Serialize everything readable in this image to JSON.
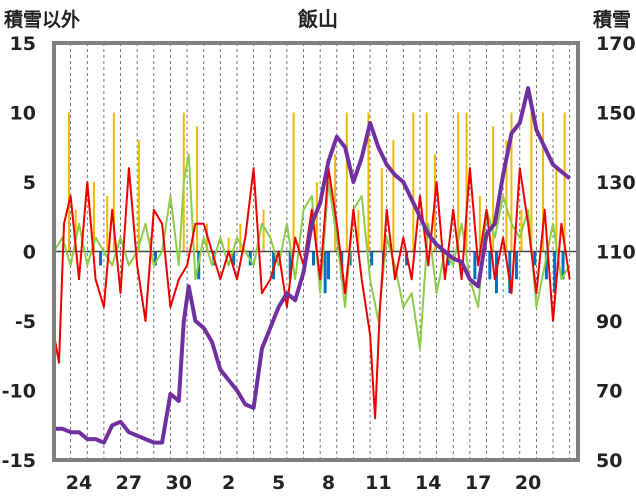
{
  "chart_data": {
    "type": "line",
    "title": "飯山",
    "ylabel_left": "積雪以外",
    "ylabel_right": "積雪",
    "y_left": {
      "min": -15,
      "max": 15,
      "ticks": [
        "15",
        "10",
        "5",
        "0",
        "-5",
        "-10",
        "-15"
      ]
    },
    "y_right": {
      "min": 50,
      "max": 170,
      "ticks": [
        "170",
        "150",
        "130",
        "110",
        "90",
        "70",
        "50"
      ]
    },
    "x_day_range": [
      0,
      31.5
    ],
    "x_tick_labels": [
      {
        "day": 1.5,
        "label": "24"
      },
      {
        "day": 4.5,
        "label": "27"
      },
      {
        "day": 7.5,
        "label": "30"
      },
      {
        "day": 10.5,
        "label": "2"
      },
      {
        "day": 13.5,
        "label": "5"
      },
      {
        "day": 16.5,
        "label": "8"
      },
      {
        "day": 19.5,
        "label": "11"
      },
      {
        "day": 22.5,
        "label": "14"
      },
      {
        "day": 25.5,
        "label": "17"
      },
      {
        "day": 28.5,
        "label": "20"
      }
    ],
    "grid": "vertical-dashed-daily",
    "colors": {
      "temp": "#ee0000",
      "snowfall": "#f5b800",
      "diff": "#0070c0",
      "change": "#8fcc4a",
      "depth": "#7030a0",
      "frame": "#808080"
    },
    "series": {
      "snow_depth": {
        "axis": "right",
        "points": [
          [
            0,
            59
          ],
          [
            0.5,
            59
          ],
          [
            1,
            58
          ],
          [
            1.5,
            58
          ],
          [
            2,
            56
          ],
          [
            2.5,
            56
          ],
          [
            3,
            55
          ],
          [
            3.5,
            60
          ],
          [
            4,
            61
          ],
          [
            4.5,
            58
          ],
          [
            5,
            57
          ],
          [
            5.5,
            56
          ],
          [
            6,
            55
          ],
          [
            6.5,
            55
          ],
          [
            7,
            69
          ],
          [
            7.5,
            67
          ],
          [
            7.8,
            90
          ],
          [
            8.1,
            100
          ],
          [
            8.5,
            90
          ],
          [
            9,
            88
          ],
          [
            9.5,
            84
          ],
          [
            10,
            76
          ],
          [
            10.5,
            73
          ],
          [
            11,
            70
          ],
          [
            11.5,
            66
          ],
          [
            12,
            65
          ],
          [
            12.5,
            82
          ],
          [
            13,
            88
          ],
          [
            13.5,
            94
          ],
          [
            14,
            98
          ],
          [
            14.5,
            96
          ],
          [
            15,
            104
          ],
          [
            15.5,
            118
          ],
          [
            16,
            124
          ],
          [
            16.5,
            136
          ],
          [
            17,
            143
          ],
          [
            17.5,
            140
          ],
          [
            18,
            130
          ],
          [
            18.5,
            137
          ],
          [
            19,
            147
          ],
          [
            19.5,
            140
          ],
          [
            20,
            135
          ],
          [
            20.5,
            132
          ],
          [
            21,
            130
          ],
          [
            21.5,
            125
          ],
          [
            22,
            120
          ],
          [
            22.5,
            115
          ],
          [
            23,
            112
          ],
          [
            23.5,
            110
          ],
          [
            24,
            108
          ],
          [
            24.5,
            107
          ],
          [
            25,
            102
          ],
          [
            25.5,
            100
          ],
          [
            26,
            115
          ],
          [
            26.5,
            118
          ],
          [
            27,
            132
          ],
          [
            27.5,
            144
          ],
          [
            28,
            147
          ],
          [
            28.5,
            157
          ],
          [
            29,
            145
          ],
          [
            29.5,
            140
          ],
          [
            30,
            135
          ],
          [
            30.5,
            133
          ],
          [
            31,
            131
          ]
        ]
      },
      "temperature": {
        "axis": "left",
        "points": [
          [
            0,
            -6
          ],
          [
            0.3,
            -8
          ],
          [
            0.6,
            2
          ],
          [
            1,
            4
          ],
          [
            1.5,
            -2
          ],
          [
            2,
            5
          ],
          [
            2.5,
            -2
          ],
          [
            3,
            -4
          ],
          [
            3.5,
            3
          ],
          [
            4,
            -3
          ],
          [
            4.5,
            6
          ],
          [
            5,
            -1
          ],
          [
            5.5,
            -5
          ],
          [
            6,
            3
          ],
          [
            6.5,
            2
          ],
          [
            7,
            -4
          ],
          [
            7.5,
            -2
          ],
          [
            8,
            -1
          ],
          [
            8.5,
            2
          ],
          [
            9,
            2
          ],
          [
            9.5,
            0
          ],
          [
            10,
            -2
          ],
          [
            10.5,
            0
          ],
          [
            11,
            -2
          ],
          [
            11.5,
            1
          ],
          [
            12,
            6
          ],
          [
            12.5,
            -3
          ],
          [
            13,
            -2
          ],
          [
            13.5,
            0
          ],
          [
            14,
            -4
          ],
          [
            14.5,
            1
          ],
          [
            15,
            -1
          ],
          [
            15.5,
            3
          ],
          [
            16,
            -2
          ],
          [
            16.5,
            6
          ],
          [
            17,
            2
          ],
          [
            17.5,
            -3
          ],
          [
            18,
            3
          ],
          [
            18.5,
            -2
          ],
          [
            19,
            -6
          ],
          [
            19.3,
            -12
          ],
          [
            19.6,
            -4
          ],
          [
            20,
            3
          ],
          [
            20.5,
            -2
          ],
          [
            21,
            1
          ],
          [
            21.5,
            -2
          ],
          [
            22,
            4
          ],
          [
            22.5,
            -1
          ],
          [
            23,
            5
          ],
          [
            23.5,
            -2
          ],
          [
            24,
            3
          ],
          [
            24.5,
            -2
          ],
          [
            25,
            6
          ],
          [
            25.5,
            -1
          ],
          [
            26,
            3
          ],
          [
            26.5,
            -2
          ],
          [
            27,
            1
          ],
          [
            27.5,
            -3
          ],
          [
            28,
            6
          ],
          [
            28.5,
            2
          ],
          [
            29,
            -3
          ],
          [
            29.5,
            3
          ],
          [
            30,
            -5
          ],
          [
            30.5,
            2
          ],
          [
            31,
            -2
          ]
        ]
      },
      "snow_change": {
        "axis": "left",
        "points": [
          [
            0,
            0
          ],
          [
            0.5,
            1
          ],
          [
            1,
            -1
          ],
          [
            1.5,
            2
          ],
          [
            2,
            -1
          ],
          [
            2.5,
            1
          ],
          [
            3,
            0
          ],
          [
            3.5,
            -1
          ],
          [
            4,
            1
          ],
          [
            4.5,
            -1
          ],
          [
            5,
            0
          ],
          [
            5.5,
            2
          ],
          [
            6,
            -1
          ],
          [
            6.5,
            0
          ],
          [
            7,
            4
          ],
          [
            7.5,
            -1
          ],
          [
            7.8,
            5
          ],
          [
            8.1,
            7
          ],
          [
            8.5,
            -2
          ],
          [
            9,
            1
          ],
          [
            9.5,
            -1
          ],
          [
            10,
            1
          ],
          [
            10.5,
            -1
          ],
          [
            11,
            1
          ],
          [
            11.5,
            0
          ],
          [
            12,
            -1
          ],
          [
            12.5,
            2
          ],
          [
            13,
            1
          ],
          [
            13.5,
            -1
          ],
          [
            14,
            2
          ],
          [
            14.5,
            -2
          ],
          [
            15,
            3
          ],
          [
            15.5,
            4
          ],
          [
            16,
            -3
          ],
          [
            16.5,
            5
          ],
          [
            17,
            1
          ],
          [
            17.5,
            -4
          ],
          [
            18,
            3
          ],
          [
            18.5,
            4
          ],
          [
            19,
            -2
          ],
          [
            19.5,
            -5
          ],
          [
            20,
            1
          ],
          [
            20.5,
            -1
          ],
          [
            21,
            -4
          ],
          [
            21.5,
            -3
          ],
          [
            22,
            -7
          ],
          [
            22.5,
            2
          ],
          [
            23,
            -3
          ],
          [
            23.5,
            0
          ],
          [
            24,
            -1
          ],
          [
            24.5,
            2
          ],
          [
            25,
            -2
          ],
          [
            25.5,
            -4
          ],
          [
            26,
            3
          ],
          [
            26.5,
            1
          ],
          [
            27,
            4
          ],
          [
            27.5,
            2
          ],
          [
            28,
            1
          ],
          [
            28.5,
            3
          ],
          [
            29,
            -4
          ],
          [
            29.5,
            -1
          ],
          [
            30,
            2
          ],
          [
            30.5,
            -2
          ],
          [
            31,
            -1
          ]
        ]
      },
      "snowfall": {
        "axis": "left",
        "bars": [
          [
            0.9,
            10
          ],
          [
            1.3,
            3
          ],
          [
            2.4,
            5
          ],
          [
            3.2,
            4
          ],
          [
            3.6,
            10
          ],
          [
            5.1,
            8
          ],
          [
            5.8,
            1
          ],
          [
            7.8,
            10
          ],
          [
            8.6,
            9
          ],
          [
            9.2,
            2
          ],
          [
            10.5,
            1
          ],
          [
            11.2,
            2
          ],
          [
            12.6,
            3
          ],
          [
            14.4,
            10
          ],
          [
            15.8,
            5
          ],
          [
            16.9,
            7
          ],
          [
            17.6,
            10
          ],
          [
            18.3,
            3
          ],
          [
            18.9,
            10
          ],
          [
            19.7,
            6
          ],
          [
            20.4,
            8
          ],
          [
            21.6,
            10
          ],
          [
            22.4,
            10
          ],
          [
            22.9,
            7
          ],
          [
            24.3,
            10
          ],
          [
            24.8,
            10
          ],
          [
            25.6,
            4
          ],
          [
            26.4,
            9
          ],
          [
            27.2,
            8
          ],
          [
            27.5,
            10
          ],
          [
            28.1,
            3
          ],
          [
            28.7,
            10
          ],
          [
            29.4,
            10
          ],
          [
            30.2,
            6
          ],
          [
            30.7,
            10
          ]
        ]
      },
      "depth_diff": {
        "axis": "left",
        "bars": [
          [
            2.8,
            -1
          ],
          [
            6.1,
            -1
          ],
          [
            8.7,
            -2
          ],
          [
            9.6,
            -1
          ],
          [
            10.8,
            -1
          ],
          [
            11.8,
            -1
          ],
          [
            13.2,
            -2
          ],
          [
            14.2,
            -2
          ],
          [
            15.6,
            -1
          ],
          [
            16.3,
            -3
          ],
          [
            16.5,
            -2
          ],
          [
            17.3,
            -2
          ],
          [
            17.8,
            -1
          ],
          [
            19.1,
            -1
          ],
          [
            19.8,
            -1
          ],
          [
            21.2,
            -1
          ],
          [
            23.7,
            -1
          ],
          [
            25.3,
            -2
          ],
          [
            26.2,
            -2
          ],
          [
            26.6,
            -3
          ],
          [
            27.4,
            -3
          ],
          [
            27.8,
            -2
          ],
          [
            28.9,
            -1
          ],
          [
            29.6,
            -2
          ],
          [
            30.1,
            -3
          ],
          [
            30.6,
            -2
          ]
        ]
      }
    }
  }
}
